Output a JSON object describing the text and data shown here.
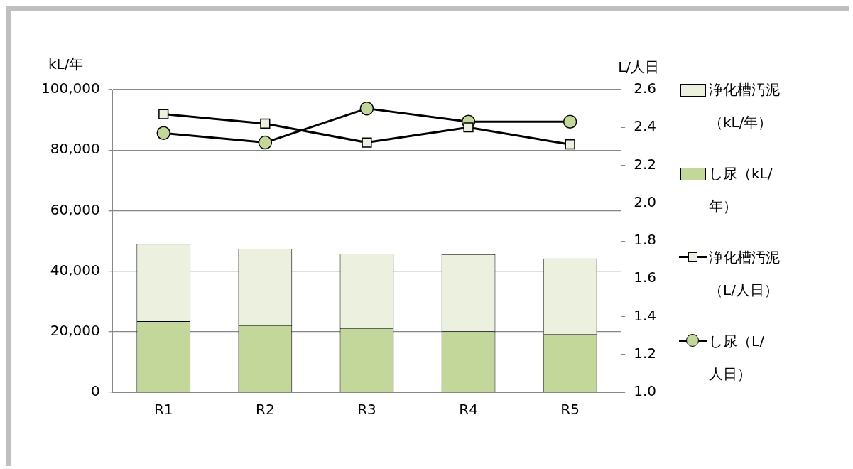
{
  "chart_data": {
    "type": "bar",
    "categories": [
      "R1",
      "R2",
      "R3",
      "R4",
      "R5"
    ],
    "ylabel": "kL/年",
    "y2label": "L/人日",
    "stacked": true,
    "grid": "y",
    "legend": "right",
    "ylim": [
      0,
      100000
    ],
    "yticks": [
      {
        "value": 0,
        "label": "0"
      },
      {
        "value": 20000,
        "label": "20,000"
      },
      {
        "value": 40000,
        "label": "40,000"
      },
      {
        "value": 60000,
        "label": "60,000"
      },
      {
        "value": 80000,
        "label": "80,000"
      },
      {
        "value": 100000,
        "label": "100,000"
      }
    ],
    "y2lim": [
      1.0,
      2.6
    ],
    "y2ticks": [
      {
        "value": 1.0,
        "label": "1.0"
      },
      1.2,
      1.4,
      1.6,
      1.8,
      {
        "value": 2.0,
        "label": "2.0"
      },
      2.2,
      2.4,
      2.6
    ],
    "series": [
      {
        "name": "し尿（kL/年）",
        "color": "#c4d79b",
        "values": [
          23500,
          22100,
          21200,
          20100,
          19200
        ]
      },
      {
        "name": "浄化槽汚泥（kL/年）",
        "color": "#ebf1de",
        "values": [
          25500,
          25300,
          24600,
          25500,
          25000
        ]
      },
      {
        "name": "浄化槽汚泥（L/人日）",
        "type": "line",
        "axis": "y2",
        "marker": "square",
        "color": "#000000",
        "values": [
          2.47,
          2.42,
          2.32,
          2.4,
          2.31
        ]
      },
      {
        "name": "し尿（L/人日）",
        "type": "line",
        "axis": "y2",
        "marker": "circle",
        "color": "#000000",
        "values": [
          2.37,
          2.32,
          2.5,
          2.43,
          2.43
        ]
      }
    ]
  }
}
